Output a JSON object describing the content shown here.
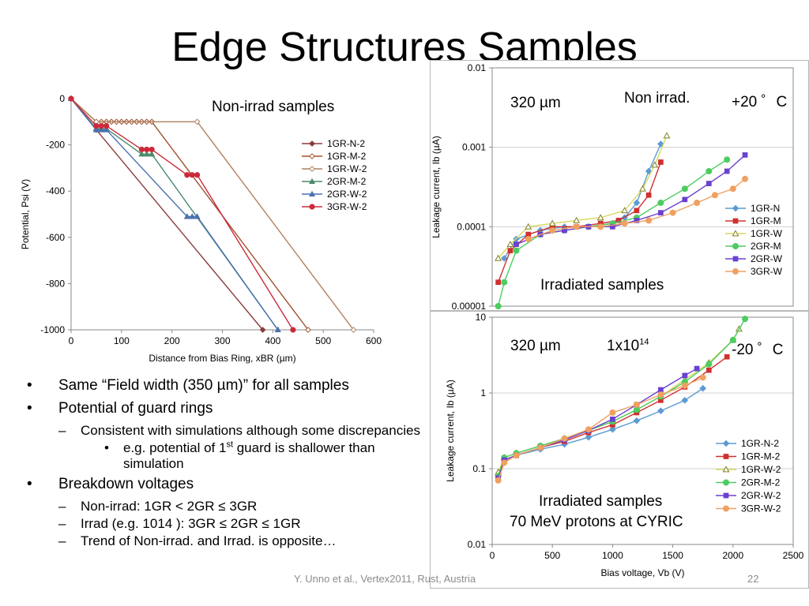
{
  "slide": {
    "title": "Edge Structures Samples",
    "footer": "Y. Unno et al., Vertex2011, Rust, Austria",
    "page_number": "22"
  },
  "bullets": [
    {
      "level": 1,
      "parts": [
        {
          "text": "Same “Field width (350 µm)” for all samples"
        }
      ]
    },
    {
      "level": 1,
      "parts": [
        {
          "text": "Potential of guard rings"
        }
      ]
    },
    {
      "level": 2,
      "parts": [
        {
          "text": "Consistent with simulations although some discrepancies"
        }
      ]
    },
    {
      "level": 3,
      "parts": [
        {
          "text": "e.g. potential of 1"
        },
        {
          "text": "st",
          "sup": true
        },
        {
          "text": " guard is shallower than simulation"
        }
      ]
    },
    {
      "level": 1,
      "parts": [
        {
          "text": "Breakdown voltages"
        }
      ]
    },
    {
      "level": 2,
      "parts": [
        {
          "text": "Non-irrad: 1GR < 2GR ≤ 3GR"
        }
      ]
    },
    {
      "level": 2,
      "parts": [
        {
          "text": "Irrad (e.g. 1014 ): 3GR ≤ 2GR ≤ 1GR"
        }
      ]
    },
    {
      "level": 2,
      "parts": [
        {
          "text": "Trend of Non-irrad. and Irrad. is opposite…"
        }
      ]
    }
  ],
  "chart_data": [
    {
      "type": "line",
      "annotation": "Non-irrad samples",
      "xlabel": "Distance from Bias Ring, xBR (µm)",
      "ylabel": "Potential, Psi (V)",
      "xlim": [
        0,
        600
      ],
      "ylim": [
        -1000,
        0
      ],
      "xticks": [
        0,
        100,
        200,
        300,
        400,
        500,
        600
      ],
      "yticks": [
        0,
        -200,
        -400,
        -600,
        -800,
        -1000
      ],
      "grid": false,
      "legend_position": "right",
      "series": [
        {
          "name": "1GR-N-2",
          "color": "#8B3A3A",
          "marker": "diamond",
          "points": [
            [
              0,
              0
            ],
            [
              50,
              -135
            ],
            [
              380,
              -1000
            ]
          ]
        },
        {
          "name": "1GR-M-2",
          "color": "#A0522D",
          "marker": "diamond-open",
          "points": [
            [
              0,
              0
            ],
            [
              50,
              -100
            ],
            [
              60,
              -100
            ],
            [
              70,
              -100
            ],
            [
              80,
              -100
            ],
            [
              90,
              -100
            ],
            [
              100,
              -100
            ],
            [
              110,
              -100
            ],
            [
              120,
              -100
            ],
            [
              130,
              -100
            ],
            [
              140,
              -100
            ],
            [
              150,
              -100
            ],
            [
              160,
              -100
            ],
            [
              470,
              -1000
            ]
          ]
        },
        {
          "name": "1GR-W-2",
          "color": "#B08060",
          "marker": "diamond-open",
          "points": [
            [
              0,
              0
            ],
            [
              50,
              -100
            ],
            [
              250,
              -100
            ],
            [
              560,
              -1000
            ]
          ]
        },
        {
          "name": "2GR-M-2",
          "color": "#4A8A6A",
          "marker": "triangle",
          "points": [
            [
              0,
              0
            ],
            [
              50,
              -130
            ],
            [
              60,
              -130
            ],
            [
              70,
              -130
            ],
            [
              140,
              -240
            ],
            [
              150,
              -240
            ],
            [
              160,
              -240
            ],
            [
              410,
              -1000
            ]
          ]
        },
        {
          "name": "2GR-W-2",
          "color": "#4A70B0",
          "marker": "triangle",
          "points": [
            [
              0,
              0
            ],
            [
              50,
              -135
            ],
            [
              60,
              -135
            ],
            [
              70,
              -135
            ],
            [
              230,
              -510
            ],
            [
              240,
              -510
            ],
            [
              250,
              -510
            ],
            [
              410,
              -1000
            ]
          ]
        },
        {
          "name": "3GR-W-2",
          "color": "#CC2A3A",
          "marker": "circle",
          "points": [
            [
              0,
              0
            ],
            [
              50,
              -118
            ],
            [
              60,
              -118
            ],
            [
              70,
              -118
            ],
            [
              140,
              -220
            ],
            [
              150,
              -220
            ],
            [
              160,
              -220
            ],
            [
              230,
              -330
            ],
            [
              240,
              -330
            ],
            [
              250,
              -330
            ],
            [
              440,
              -1000
            ]
          ]
        }
      ]
    },
    {
      "type": "line",
      "log_y": true,
      "annotations": [
        "320 µm",
        "Non irrad.",
        "+20 ゜C",
        "Irradiated samples"
      ],
      "xlabel": "",
      "ylabel": "Leakage current, Ib (µA)",
      "xlim": [
        0,
        2500
      ],
      "ylim": [
        1e-05,
        0.01
      ],
      "yticks": [
        0.01,
        0.001,
        0.0001,
        1e-05
      ],
      "ytick_labels": [
        "0.01",
        "0.001",
        "0.0001",
        "0.00001"
      ],
      "grid": true,
      "legend_position": "bottom-right",
      "series": [
        {
          "name": "1GR-N",
          "color": "#5B9BD5",
          "marker": "diamond",
          "points": [
            [
              100,
              4e-05
            ],
            [
              200,
              7e-05
            ],
            [
              400,
              9e-05
            ],
            [
              600,
              0.0001
            ],
            [
              800,
              0.0001
            ],
            [
              1000,
              0.00011
            ],
            [
              1100,
              0.00013
            ],
            [
              1200,
              0.0002
            ],
            [
              1300,
              0.0005
            ],
            [
              1400,
              0.0011
            ]
          ]
        },
        {
          "name": "1GR-M",
          "color": "#D03030",
          "marker": "square",
          "points": [
            [
              50,
              2e-05
            ],
            [
              150,
              5e-05
            ],
            [
              300,
              8e-05
            ],
            [
              500,
              0.0001
            ],
            [
              700,
              0.0001
            ],
            [
              900,
              0.00011
            ],
            [
              1050,
              0.00012
            ],
            [
              1200,
              0.00016
            ],
            [
              1300,
              0.00025
            ],
            [
              1400,
              0.00065
            ]
          ]
        },
        {
          "name": "1GR-W",
          "color": "#D8D860",
          "marker": "triangle-open",
          "points": [
            [
              50,
              4e-05
            ],
            [
              150,
              6e-05
            ],
            [
              300,
              0.0001
            ],
            [
              500,
              0.00011
            ],
            [
              700,
              0.00012
            ],
            [
              900,
              0.00013
            ],
            [
              1100,
              0.00016
            ],
            [
              1250,
              0.0003
            ],
            [
              1350,
              0.0006
            ],
            [
              1450,
              0.0014
            ]
          ]
        },
        {
          "name": "2GR-M",
          "color": "#4DCC60",
          "marker": "circle",
          "points": [
            [
              50,
              1e-05
            ],
            [
              100,
              2e-05
            ],
            [
              200,
              5e-05
            ],
            [
              400,
              8e-05
            ],
            [
              600,
              9e-05
            ],
            [
              800,
              0.0001
            ],
            [
              1000,
              0.00011
            ],
            [
              1200,
              0.00013
            ],
            [
              1400,
              0.0002
            ],
            [
              1600,
              0.0003
            ],
            [
              1800,
              0.0005
            ],
            [
              1950,
              0.0007
            ]
          ]
        },
        {
          "name": "2GR-W",
          "color": "#6A40D0",
          "marker": "square",
          "points": [
            [
              200,
              6e-05
            ],
            [
              400,
              8e-05
            ],
            [
              600,
              9e-05
            ],
            [
              800,
              0.0001
            ],
            [
              1000,
              0.0001
            ],
            [
              1200,
              0.00012
            ],
            [
              1400,
              0.00015
            ],
            [
              1600,
              0.00022
            ],
            [
              1800,
              0.00035
            ],
            [
              1950,
              0.0005
            ],
            [
              2100,
              0.0008
            ]
          ]
        },
        {
          "name": "3GR-W",
          "color": "#F0A060",
          "marker": "circle",
          "points": [
            [
              300,
              7e-05
            ],
            [
              500,
              9e-05
            ],
            [
              700,
              0.0001
            ],
            [
              900,
              0.0001
            ],
            [
              1100,
              0.00011
            ],
            [
              1300,
              0.00012
            ],
            [
              1500,
              0.00015
            ],
            [
              1700,
              0.0002
            ],
            [
              1850,
              0.00025
            ],
            [
              2000,
              0.0003
            ],
            [
              2100,
              0.0004
            ]
          ]
        }
      ]
    },
    {
      "type": "line",
      "log_y": true,
      "annotations": [
        "320 µm",
        "1x10",
        "14",
        "-20 ゜C",
        "Irradiated samples",
        "70 MeV protons at CYRIC"
      ],
      "xlabel": "Bias voltage, Vb (V)",
      "ylabel": "Leakage current, Ib (µA)",
      "xlim": [
        0,
        2500
      ],
      "ylim": [
        0.01,
        10
      ],
      "xticks": [
        0,
        500,
        1000,
        1500,
        2000,
        2500
      ],
      "yticks": [
        10,
        1,
        0.1,
        0.01
      ],
      "ytick_labels": [
        "10",
        "1",
        "0.1",
        "0.01"
      ],
      "grid": true,
      "legend_position": "bottom-right",
      "series": [
        {
          "name": "1GR-N-2",
          "color": "#5B9BD5",
          "marker": "diamond",
          "points": [
            [
              50,
              0.08
            ],
            [
              100,
              0.13
            ],
            [
              200,
              0.15
            ],
            [
              400,
              0.18
            ],
            [
              600,
              0.21
            ],
            [
              800,
              0.26
            ],
            [
              1000,
              0.33
            ],
            [
              1200,
              0.43
            ],
            [
              1400,
              0.58
            ],
            [
              1600,
              0.8
            ],
            [
              1750,
              1.15
            ]
          ]
        },
        {
          "name": "1GR-M-2",
          "color": "#D03030",
          "marker": "square",
          "points": [
            [
              50,
              0.075
            ],
            [
              100,
              0.13
            ],
            [
              200,
              0.15
            ],
            [
              400,
              0.19
            ],
            [
              600,
              0.23
            ],
            [
              800,
              0.3
            ],
            [
              1000,
              0.38
            ],
            [
              1200,
              0.55
            ],
            [
              1400,
              0.8
            ],
            [
              1600,
              1.2
            ],
            [
              1800,
              2
            ],
            [
              1950,
              3
            ]
          ]
        },
        {
          "name": "1GR-W-2",
          "color": "#D8D860",
          "marker": "triangle-open",
          "points": [
            [
              50,
              0.09
            ],
            [
              100,
              0.14
            ],
            [
              200,
              0.16
            ],
            [
              400,
              0.2
            ],
            [
              600,
              0.25
            ],
            [
              800,
              0.32
            ],
            [
              1000,
              0.42
            ],
            [
              1200,
              0.6
            ],
            [
              1400,
              0.9
            ],
            [
              1600,
              1.5
            ],
            [
              1800,
              2.5
            ],
            [
              2000,
              5
            ],
            [
              2050,
              7
            ]
          ]
        },
        {
          "name": "2GR-M-2",
          "color": "#4DCC60",
          "marker": "circle",
          "points": [
            [
              50,
              0.08
            ],
            [
              100,
              0.14
            ],
            [
              200,
              0.16
            ],
            [
              400,
              0.2
            ],
            [
              600,
              0.25
            ],
            [
              800,
              0.32
            ],
            [
              1000,
              0.42
            ],
            [
              1200,
              0.6
            ],
            [
              1400,
              0.9
            ],
            [
              1600,
              1.4
            ],
            [
              1800,
              2.4
            ],
            [
              2000,
              5
            ],
            [
              2100,
              9.5
            ]
          ]
        },
        {
          "name": "2GR-W-2",
          "color": "#6A40D0",
          "marker": "square",
          "points": [
            [
              50,
              0.075
            ],
            [
              100,
              0.13
            ],
            [
              200,
              0.15
            ],
            [
              400,
              0.19
            ],
            [
              600,
              0.24
            ],
            [
              800,
              0.32
            ],
            [
              1000,
              0.45
            ],
            [
              1200,
              0.7
            ],
            [
              1400,
              1.1
            ],
            [
              1600,
              1.7
            ],
            [
              1700,
              2.1
            ]
          ]
        },
        {
          "name": "3GR-W-2",
          "color": "#F0A060",
          "marker": "circle",
          "points": [
            [
              50,
              0.07
            ],
            [
              100,
              0.12
            ],
            [
              200,
              0.15
            ],
            [
              400,
              0.19
            ],
            [
              600,
              0.25
            ],
            [
              800,
              0.33
            ],
            [
              1000,
              0.55
            ],
            [
              1200,
              0.7
            ],
            [
              1400,
              0.95
            ],
            [
              1600,
              1.25
            ],
            [
              1750,
              1.6
            ]
          ]
        }
      ]
    }
  ]
}
